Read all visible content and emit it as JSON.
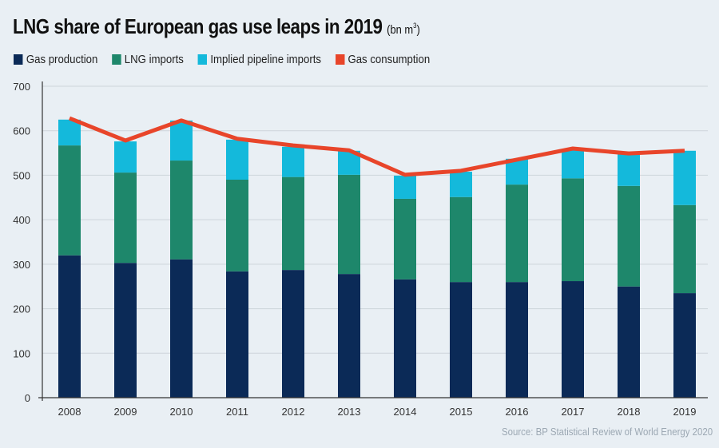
{
  "chart_data": {
    "type": "bar",
    "stacked": true,
    "title": "LNG share of European gas use leaps in 2019",
    "title_unit": "(bn m",
    "title_unit_sup": "3",
    "title_unit_close": ")",
    "xlabel": "",
    "ylabel": "",
    "ylim": [
      0,
      700
    ],
    "yticks": [
      0,
      100,
      200,
      300,
      400,
      500,
      600,
      700
    ],
    "grid": true,
    "legend_position": "top-left",
    "categories": [
      "2008",
      "2009",
      "2010",
      "2011",
      "2012",
      "2013",
      "2014",
      "2015",
      "2016",
      "2017",
      "2018",
      "2019"
    ],
    "series": [
      {
        "name": "Gas production",
        "type": "bar",
        "color": "#0b2a57",
        "values": [
          320,
          303,
          311,
          284,
          287,
          278,
          266,
          260,
          260,
          262,
          250,
          235
        ]
      },
      {
        "name": "LNG imports",
        "type": "bar",
        "color": "#1e876b",
        "values": [
          247,
          203,
          222,
          206,
          209,
          223,
          181,
          191,
          219,
          231,
          226,
          198
        ]
      },
      {
        "name": "Implied pipeline imports",
        "type": "bar",
        "color": "#14b9db",
        "values": [
          58,
          70,
          90,
          90,
          68,
          54,
          52,
          57,
          58,
          63,
          71,
          122
        ]
      },
      {
        "name": "Gas consumption",
        "type": "line",
        "color": "#e8452a",
        "values": [
          628,
          578,
          623,
          582,
          567,
          556,
          501,
          510,
          535,
          560,
          549,
          555
        ]
      }
    ],
    "source": "Source: BP Statistical Review of World Energy 2020"
  }
}
